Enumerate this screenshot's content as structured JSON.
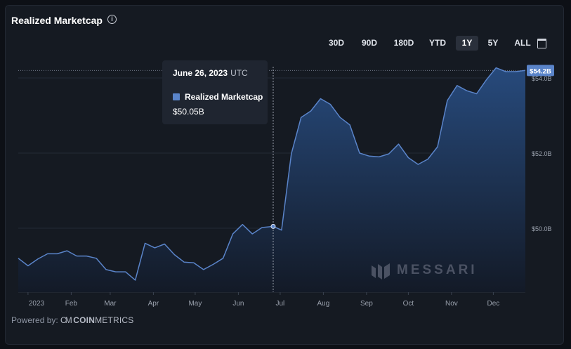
{
  "header": {
    "title": "Realized Marketcap",
    "info_icon": "info-icon"
  },
  "range_buttons": [
    {
      "label": "30D",
      "active": false
    },
    {
      "label": "90D",
      "active": false
    },
    {
      "label": "180D",
      "active": false
    },
    {
      "label": "YTD",
      "active": false
    },
    {
      "label": "1Y",
      "active": true
    },
    {
      "label": "5Y",
      "active": false
    },
    {
      "label": "ALL",
      "active": false
    }
  ],
  "calendar_icon": "calendar-icon",
  "tooltip": {
    "date": "June 26, 2023",
    "timezone": "UTC",
    "series_name": "Realized Marketcap",
    "value": "$50.05B"
  },
  "watermark": "MESSARI",
  "footer": {
    "powered_label": "Powered by:",
    "logo_bold": "COIN",
    "logo_thin": "METRICS"
  },
  "colors": {
    "line": "#5a84c9",
    "area_top": "#274a7c",
    "area_bottom": "#131a27",
    "last_value_badge": "#5a84c9"
  },
  "chart_data": {
    "type": "area",
    "title": "Realized Marketcap",
    "x_tick_labels": [
      "2023",
      "Feb",
      "Mar",
      "Apr",
      "May",
      "Jun",
      "Jul",
      "Aug",
      "Sep",
      "Oct",
      "Nov",
      "Dec"
    ],
    "y_tick_labels": [
      "$50.0B",
      "$52.0B",
      "$54.0B"
    ],
    "last_value_label": "$54.2B",
    "ylim": [
      48.3,
      54.3
    ],
    "grid": true,
    "crosshair_date": "2023-06-26",
    "series": [
      {
        "name": "Realized Marketcap",
        "x": [
          "2022-12-25",
          "2023-01-01",
          "2023-01-08",
          "2023-01-15",
          "2023-01-22",
          "2023-01-29",
          "2023-02-05",
          "2023-02-12",
          "2023-02-19",
          "2023-02-26",
          "2023-03-05",
          "2023-03-12",
          "2023-03-19",
          "2023-03-26",
          "2023-04-02",
          "2023-04-09",
          "2023-04-16",
          "2023-04-23",
          "2023-04-30",
          "2023-05-07",
          "2023-05-14",
          "2023-05-21",
          "2023-05-28",
          "2023-06-04",
          "2023-06-11",
          "2023-06-18",
          "2023-06-26",
          "2023-07-02",
          "2023-07-09",
          "2023-07-16",
          "2023-07-23",
          "2023-07-30",
          "2023-08-06",
          "2023-08-13",
          "2023-08-20",
          "2023-08-27",
          "2023-09-03",
          "2023-09-10",
          "2023-09-17",
          "2023-09-24",
          "2023-10-01",
          "2023-10-08",
          "2023-10-15",
          "2023-10-22",
          "2023-10-29",
          "2023-11-05",
          "2023-11-12",
          "2023-11-19",
          "2023-11-26",
          "2023-12-03",
          "2023-12-10",
          "2023-12-17",
          "2023-12-24"
        ],
        "values": [
          49.2,
          49.0,
          49.18,
          49.32,
          49.32,
          49.4,
          49.26,
          49.26,
          49.2,
          48.9,
          48.84,
          48.84,
          48.62,
          49.6,
          49.48,
          49.58,
          49.3,
          49.1,
          49.08,
          48.9,
          49.04,
          49.2,
          49.85,
          50.1,
          49.85,
          50.02,
          50.05,
          49.95,
          51.98,
          52.95,
          53.12,
          53.45,
          53.3,
          52.95,
          52.75,
          52.0,
          51.92,
          51.9,
          51.98,
          52.24,
          51.88,
          51.7,
          51.84,
          52.17,
          53.4,
          53.8,
          53.66,
          53.58,
          53.95,
          54.27,
          54.17,
          54.17,
          54.2
        ]
      }
    ]
  }
}
